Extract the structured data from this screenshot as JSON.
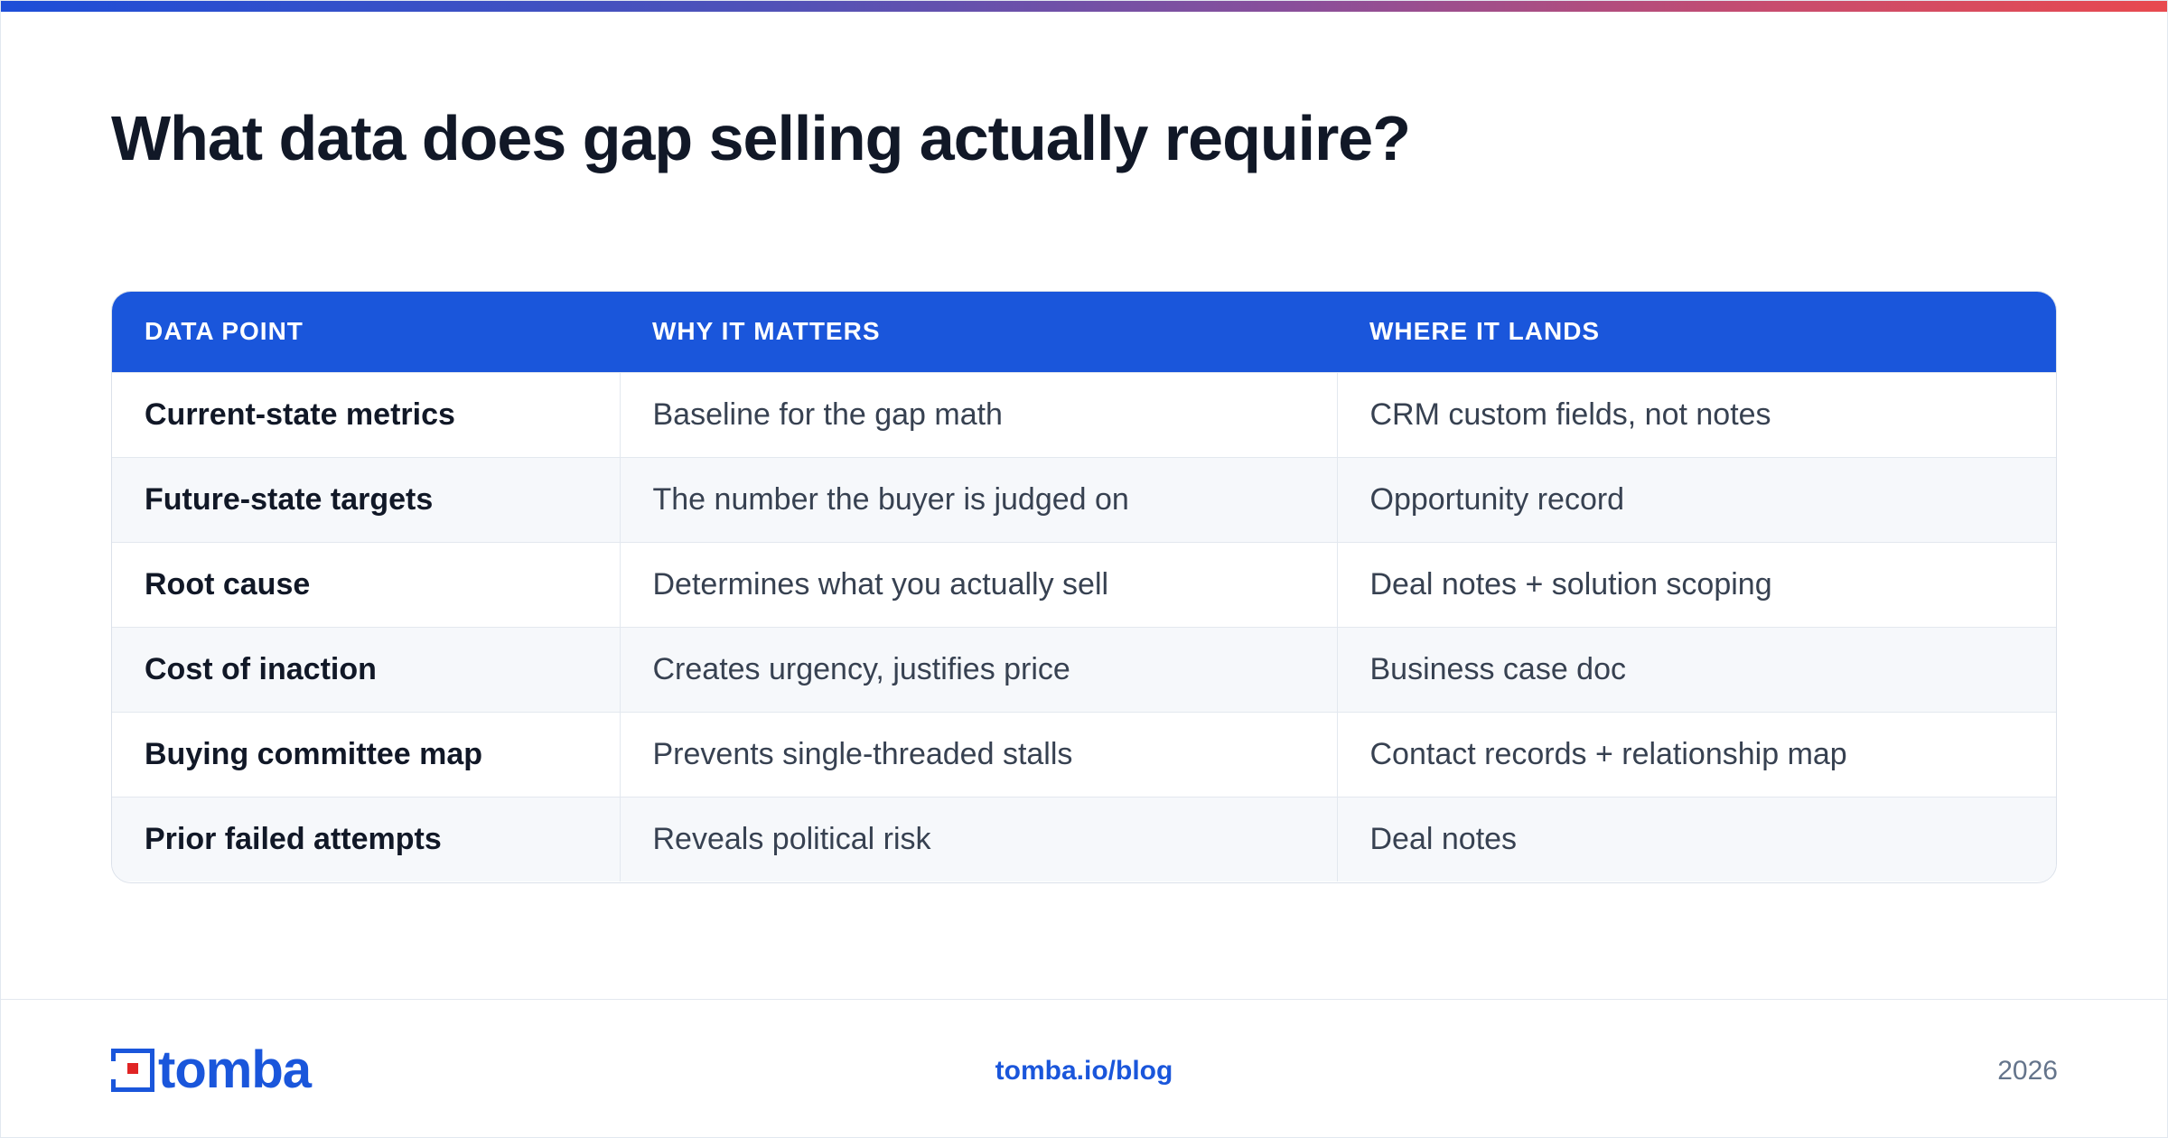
{
  "accent_stripe": {
    "colors": [
      "#1d4ed8",
      "#8a4f9a",
      "#e84a4f"
    ]
  },
  "title": "What data does gap selling actually require?",
  "table": {
    "header_color": "#1a56db",
    "columns": [
      "DATA POINT",
      "WHY IT MATTERS",
      "WHERE IT LANDS"
    ],
    "rows": [
      {
        "point": "Current-state metrics",
        "why": "Baseline for the gap math",
        "where": "CRM custom fields, not notes"
      },
      {
        "point": "Future-state targets",
        "why": "The number the buyer is judged on",
        "where": "Opportunity record"
      },
      {
        "point": "Root cause",
        "why": "Determines what you actually sell",
        "where": "Deal notes + solution scoping"
      },
      {
        "point": "Cost of inaction",
        "why": "Creates urgency, justifies price",
        "where": "Business case doc"
      },
      {
        "point": "Buying committee map",
        "why": "Prevents single-threaded stalls",
        "where": "Contact records + relationship map"
      },
      {
        "point": "Prior failed attempts",
        "why": "Reveals political risk",
        "where": "Deal notes"
      }
    ]
  },
  "footer": {
    "logo": {
      "word": "tomba",
      "icon": "tomba-logo-icon",
      "colors": {
        "brand": "#1a56db",
        "accent": "#e02424"
      }
    },
    "link": "tomba.io/blog",
    "year": "2026"
  }
}
